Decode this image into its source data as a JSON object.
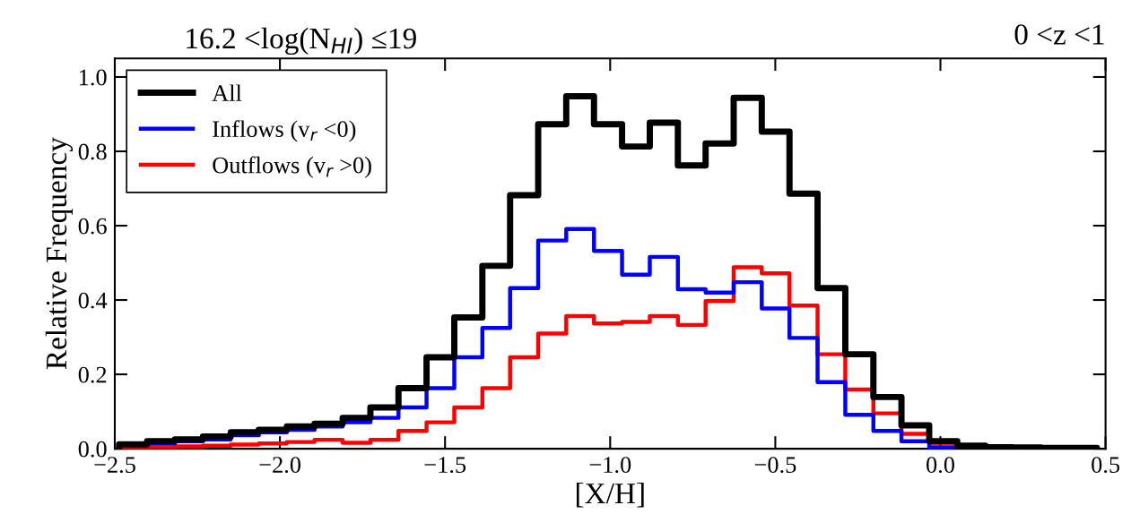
{
  "chart_data": {
    "type": "histogram",
    "title": "16.2 <log(N$_{HI}$) ≤19",
    "annotations": [
      "0 <z <1"
    ],
    "xlabel": "[X/H]",
    "ylabel": "Relative Frequency",
    "bins": [
      -2.487,
      -2.402,
      -2.318,
      -2.233,
      -2.149,
      -2.064,
      -1.979,
      -1.895,
      -1.81,
      -1.726,
      -1.641,
      -1.556,
      -1.472,
      -1.387,
      -1.303,
      -1.218,
      -1.133,
      -1.049,
      -0.964,
      -0.88,
      -0.795,
      -0.711,
      -0.626,
      -0.541,
      -0.457,
      -0.372,
      -0.288,
      -0.203,
      -0.118,
      -0.034,
      0.051,
      0.136,
      0.22,
      0.305,
      0.389,
      0.474
    ],
    "series": [
      {
        "name": "All",
        "color": "#000000",
        "values": [
          0.012,
          0.02,
          0.025,
          0.033,
          0.044,
          0.051,
          0.06,
          0.067,
          0.083,
          0.111,
          0.163,
          0.246,
          0.353,
          0.492,
          0.682,
          0.873,
          0.948,
          0.873,
          0.813,
          0.877,
          0.762,
          0.821,
          0.944,
          0.853,
          0.686,
          0.432,
          0.254,
          0.139,
          0.063,
          0.02,
          0.008,
          0.004,
          0.003,
          0.002,
          0.002
        ]
      },
      {
        "name": "Inflows (v$_{r}$ <0)",
        "color": "#0000ff",
        "values": [
          0.008,
          0.014,
          0.02,
          0.025,
          0.036,
          0.044,
          0.051,
          0.06,
          0.071,
          0.083,
          0.111,
          0.163,
          0.246,
          0.325,
          0.432,
          0.56,
          0.591,
          0.532,
          0.468,
          0.516,
          0.429,
          0.42,
          0.448,
          0.377,
          0.298,
          0.179,
          0.091,
          0.048,
          0.02,
          0.004,
          0.002,
          0.001,
          0.001,
          0.001,
          0.001
        ]
      },
      {
        "name": "Outflows (v$_{r}$ >0)",
        "color": "#ff0000",
        "values": [
          0.004,
          0.004,
          0.006,
          0.008,
          0.011,
          0.014,
          0.018,
          0.024,
          0.016,
          0.024,
          0.048,
          0.071,
          0.111,
          0.163,
          0.246,
          0.31,
          0.357,
          0.337,
          0.341,
          0.357,
          0.333,
          0.397,
          0.488,
          0.472,
          0.385,
          0.254,
          0.159,
          0.095,
          0.04,
          0.016,
          0.005,
          0.003,
          0.002,
          0.002,
          0.002
        ]
      }
    ],
    "xlim": [
      -2.5,
      0.5
    ],
    "xticks": [
      {
        "value": -2.5,
        "label": "−2.5"
      },
      {
        "value": -2.0,
        "label": "−2.0"
      },
      {
        "value": -1.5,
        "label": "−1.5"
      },
      {
        "value": -1.0,
        "label": "−1.0"
      },
      {
        "value": -0.5,
        "label": "−0.5"
      },
      {
        "value": 0.0,
        "label": "0.0"
      },
      {
        "value": 0.5,
        "label": "0.5"
      }
    ],
    "ylim": [
      0,
      1.05
    ],
    "yticks": [
      {
        "value": 0,
        "label": "0.0"
      },
      {
        "value": 0.2,
        "label": "0.2"
      },
      {
        "value": 0.4,
        "label": "0.4"
      },
      {
        "value": 0.6,
        "label": "0.6"
      },
      {
        "value": 0.8,
        "label": "0.8"
      },
      {
        "value": 1.0,
        "label": "1.0"
      }
    ],
    "legend": "top left",
    "grid": false
  }
}
